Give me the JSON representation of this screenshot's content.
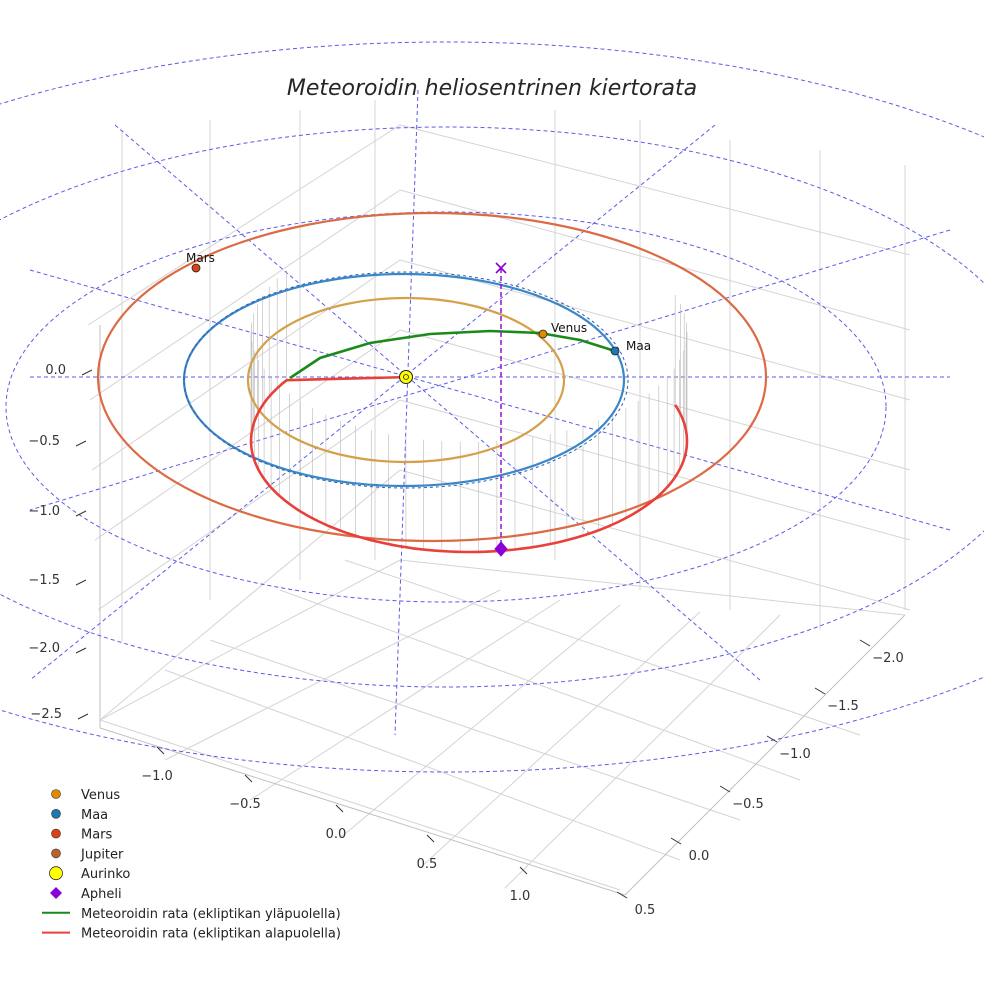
{
  "chart_data": {
    "type": "line3d",
    "title": "Meteoroidin heliosentrinen kiertorata",
    "axes": {
      "x_ticks": [
        "−1.0",
        "−0.5",
        "0.0",
        "0.5",
        "1.0"
      ],
      "y_ticks": [
        "−2.0",
        "−1.5",
        "−1.0",
        "−0.5",
        "0.0",
        "0.5"
      ],
      "z_ticks": [
        "0.0",
        "−0.5",
        "−1.0",
        "−1.5",
        "−2.0",
        "−2.5"
      ]
    },
    "planet_orbits_au": [
      {
        "name": "Venus",
        "radius": 0.72,
        "color": "#d4a04a"
      },
      {
        "name": "Maa",
        "radius": 1.0,
        "color": "#3a86c8"
      },
      {
        "name": "Mars",
        "radius": 1.52,
        "color": "#dc6b45"
      }
    ],
    "planets": [
      {
        "name": "Venus",
        "label": "Venus",
        "color": "#e08a00"
      },
      {
        "name": "Maa",
        "label": "Maa",
        "color": "#1f77b4"
      },
      {
        "name": "Mars",
        "label": "Mars",
        "color": "#d84315"
      }
    ],
    "meteoroid_orbit": {
      "above_label": "Meteoroidin rata (ekliptikan yläpuolella)",
      "below_label": "Meteoroidin rata (ekliptikan alapuolella)",
      "above_color": "#1a8a1a",
      "below_color": "#e8403a"
    },
    "aphelion": {
      "label": "Apheli",
      "color": "#8b00d6"
    },
    "legend": [
      {
        "label": "Venus",
        "marker": "circle",
        "color": "#e08a00"
      },
      {
        "label": "Maa",
        "marker": "circle",
        "color": "#1f77b4"
      },
      {
        "label": "Mars",
        "marker": "circle",
        "color": "#d84315"
      },
      {
        "label": "Jupiter",
        "marker": "circle",
        "color": "#b5652b"
      },
      {
        "label": "Aurinko",
        "marker": "circle-large",
        "color": "#ffff00"
      },
      {
        "label": "Apheli",
        "marker": "diamond",
        "color": "#8b00d6"
      },
      {
        "label": "Meteoroidin rata (ekliptikan yläpuolella)",
        "marker": "line",
        "color": "#1a8a1a"
      },
      {
        "label": "Meteoroidin rata (ekliptikan alapuolella)",
        "marker": "line",
        "color": "#e8403a"
      }
    ]
  }
}
